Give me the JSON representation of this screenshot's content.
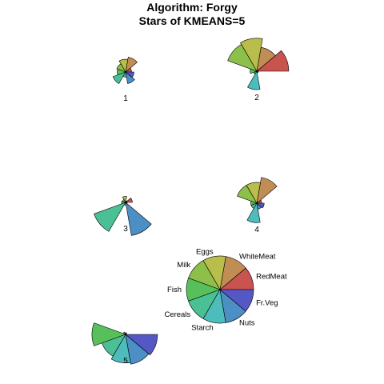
{
  "chart_data": {
    "type": "segment-star",
    "title": "Algorithm: Forgy",
    "subtitle": "Stars of KMEANS=5",
    "variables": [
      "RedMeat",
      "WhiteMeat",
      "Eggs",
      "Milk",
      "Fish",
      "Cereals",
      "Starch",
      "Nuts",
      "Fr.Veg"
    ],
    "colors": {
      "RedMeat": "#c9534f",
      "WhiteMeat": "#c08d54",
      "Eggs": "#b9bd4c",
      "Milk": "#8cc04a",
      "Fish": "#58c05a",
      "Cereals": "#4cc095",
      "Starch": "#4cbcbc",
      "Nuts": "#4c8fc4",
      "Fr.Veg": "#5558c4"
    },
    "clusters": [
      {
        "label": "1",
        "values": [
          0.18,
          0.45,
          0.38,
          0.28,
          0.25,
          0.4,
          0.15,
          0.35,
          0.25
        ]
      },
      {
        "label": "2",
        "values": [
          0.95,
          0.72,
          0.98,
          0.92,
          0.2,
          0.1,
          0.55,
          0.05,
          0.05
        ]
      },
      {
        "label": "3",
        "values": [
          0.2,
          0.05,
          0.18,
          0.1,
          0.12,
          1.0,
          0.08,
          1.0,
          0.05
        ]
      },
      {
        "label": "4",
        "values": [
          0.15,
          0.78,
          0.62,
          0.62,
          0.18,
          0.18,
          0.58,
          0.18,
          0.22
        ]
      },
      {
        "label": "5",
        "values": [
          0.02,
          0.05,
          0.05,
          0.08,
          1.0,
          0.75,
          0.85,
          0.9,
          0.95
        ]
      }
    ],
    "key_values": [
      1,
      1,
      1,
      1,
      1,
      1,
      1,
      1,
      1
    ]
  }
}
